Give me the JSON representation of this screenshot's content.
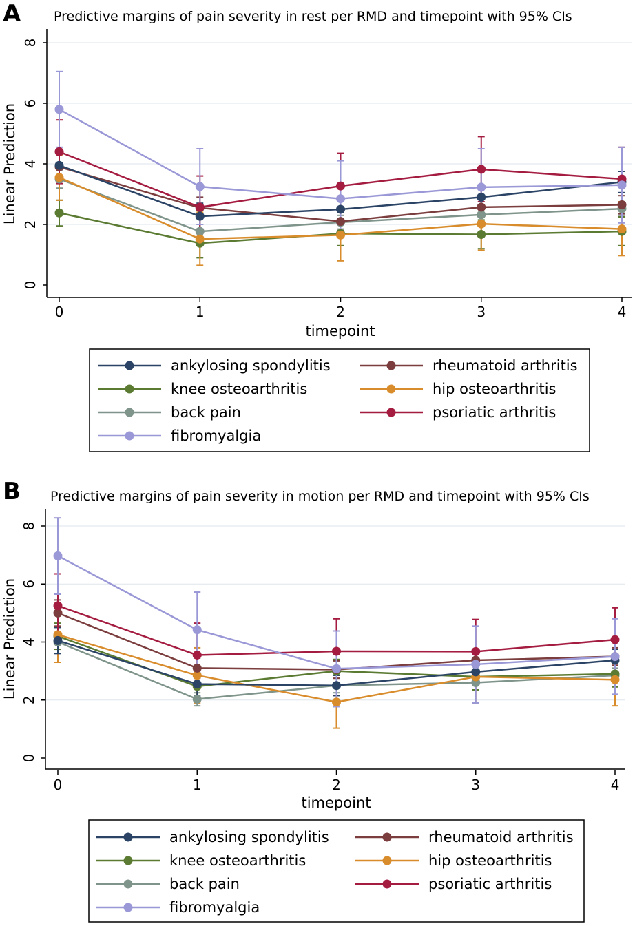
{
  "chart_data": [
    {
      "type": "line",
      "panel": "A",
      "title": "Predictive margins of pain severity in rest per RMD and timepoint with 95% CIs",
      "xlabel": "timepoint",
      "ylabel": "Linear Prediction",
      "x": [
        0,
        1,
        2,
        3,
        4
      ],
      "xlim": [
        0,
        4
      ],
      "ylim": [
        0,
        8
      ],
      "yticks": [
        0,
        2,
        4,
        6,
        8
      ],
      "grid": true,
      "legend_position": "bottom",
      "series": [
        {
          "name": "ankylosing spondylitis",
          "color": "#2b4466",
          "values": [
            3.95,
            2.27,
            2.5,
            2.9,
            3.4
          ],
          "ci_low": [
            3.45,
            1.85,
            2.15,
            2.5,
            3.05
          ],
          "ci_high": [
            4.45,
            2.7,
            2.85,
            3.3,
            3.75
          ]
        },
        {
          "name": "rheumatoid arthritis",
          "color": "#7b3d3d",
          "values": [
            3.9,
            2.55,
            2.1,
            2.57,
            2.65
          ],
          "ci_low": [
            3.45,
            2.2,
            1.8,
            2.3,
            2.35
          ],
          "ci_high": [
            4.35,
            2.9,
            2.4,
            2.85,
            2.95
          ]
        },
        {
          "name": "knee osteoarthritis",
          "color": "#5b7b32",
          "values": [
            2.38,
            1.38,
            1.7,
            1.67,
            1.77
          ],
          "ci_low": [
            1.95,
            0.9,
            1.3,
            1.2,
            1.3
          ],
          "ci_high": [
            2.8,
            1.85,
            2.1,
            2.15,
            2.25
          ]
        },
        {
          "name": "hip osteoarthritis",
          "color": "#d98c2b",
          "values": [
            3.55,
            1.52,
            1.65,
            2.02,
            1.85
          ],
          "ci_low": [
            2.8,
            0.65,
            0.8,
            1.15,
            0.97
          ],
          "ci_high": [
            4.3,
            2.4,
            2.5,
            2.9,
            2.75
          ]
        },
        {
          "name": "back pain",
          "color": "#7f948a",
          "values": [
            3.5,
            1.77,
            2.07,
            2.32,
            2.52
          ],
          "ci_low": [
            3.2,
            1.55,
            1.85,
            2.1,
            2.3
          ],
          "ci_high": [
            3.8,
            2.0,
            2.3,
            2.55,
            2.75
          ]
        },
        {
          "name": "psoriatic arthritis",
          "color": "#a51c41",
          "values": [
            4.4,
            2.57,
            3.27,
            3.82,
            3.5
          ],
          "ci_low": [
            3.35,
            1.55,
            2.2,
            2.75,
            2.45
          ],
          "ci_high": [
            5.45,
            3.6,
            4.35,
            4.9,
            4.55
          ]
        },
        {
          "name": "fibromyalgia",
          "color": "#9a98d6",
          "values": [
            5.8,
            3.25,
            2.85,
            3.23,
            3.3
          ],
          "ci_low": [
            4.55,
            2.0,
            1.6,
            1.95,
            2.05
          ],
          "ci_high": [
            7.05,
            4.5,
            4.1,
            4.5,
            4.55
          ]
        }
      ]
    },
    {
      "type": "line",
      "panel": "B",
      "title": "Predictive margins of pain severity in motion per RMD and timepoint with 95% CIs",
      "xlabel": "timepoint",
      "ylabel": "Linear Prediction",
      "x": [
        0,
        1,
        2,
        3,
        4
      ],
      "xlim": [
        0,
        4
      ],
      "ylim": [
        0,
        8
      ],
      "yticks": [
        0,
        2,
        4,
        6,
        8
      ],
      "grid": true,
      "legend_position": "bottom",
      "series": [
        {
          "name": "ankylosing spondylitis",
          "color": "#2b4466",
          "values": [
            4.05,
            2.55,
            2.5,
            2.97,
            3.37
          ],
          "ci_low": [
            3.6,
            2.15,
            2.15,
            2.6,
            3.0
          ],
          "ci_high": [
            4.5,
            2.95,
            2.85,
            3.35,
            3.75
          ]
        },
        {
          "name": "rheumatoid arthritis",
          "color": "#7b3d3d",
          "values": [
            5.0,
            3.1,
            3.05,
            3.37,
            3.5
          ],
          "ci_low": [
            4.55,
            2.75,
            2.75,
            3.05,
            3.2
          ],
          "ci_high": [
            5.45,
            3.45,
            3.35,
            3.7,
            3.8
          ]
        },
        {
          "name": "knee osteoarthritis",
          "color": "#5b7b32",
          "values": [
            4.2,
            2.47,
            3.0,
            2.8,
            2.9
          ],
          "ci_low": [
            3.75,
            2.05,
            2.6,
            2.35,
            2.45
          ],
          "ci_high": [
            4.65,
            2.9,
            3.4,
            3.25,
            3.35
          ]
        },
        {
          "name": "hip osteoarthritis",
          "color": "#d98c2b",
          "values": [
            4.25,
            2.85,
            1.93,
            2.8,
            2.7
          ],
          "ci_low": [
            3.3,
            1.9,
            1.03,
            1.9,
            1.8
          ],
          "ci_high": [
            5.2,
            3.8,
            2.85,
            3.7,
            3.6
          ]
        },
        {
          "name": "back pain",
          "color": "#7f948a",
          "values": [
            4.0,
            2.03,
            2.5,
            2.6,
            2.85
          ],
          "ci_low": [
            3.75,
            1.8,
            2.25,
            2.35,
            2.6
          ],
          "ci_high": [
            4.25,
            2.25,
            2.75,
            2.85,
            3.1
          ]
        },
        {
          "name": "psoriatic arthritis",
          "color": "#a51c41",
          "values": [
            5.25,
            3.55,
            3.68,
            3.67,
            4.08
          ],
          "ci_low": [
            4.15,
            2.45,
            2.55,
            2.55,
            2.97
          ],
          "ci_high": [
            6.35,
            4.65,
            4.8,
            4.78,
            5.18
          ]
        },
        {
          "name": "fibromyalgia",
          "color": "#9a98d6",
          "values": [
            6.97,
            4.42,
            3.08,
            3.23,
            3.5
          ],
          "ci_low": [
            5.65,
            3.1,
            1.77,
            1.9,
            2.2
          ],
          "ci_high": [
            8.28,
            5.72,
            4.38,
            4.55,
            4.8
          ]
        }
      ]
    }
  ]
}
